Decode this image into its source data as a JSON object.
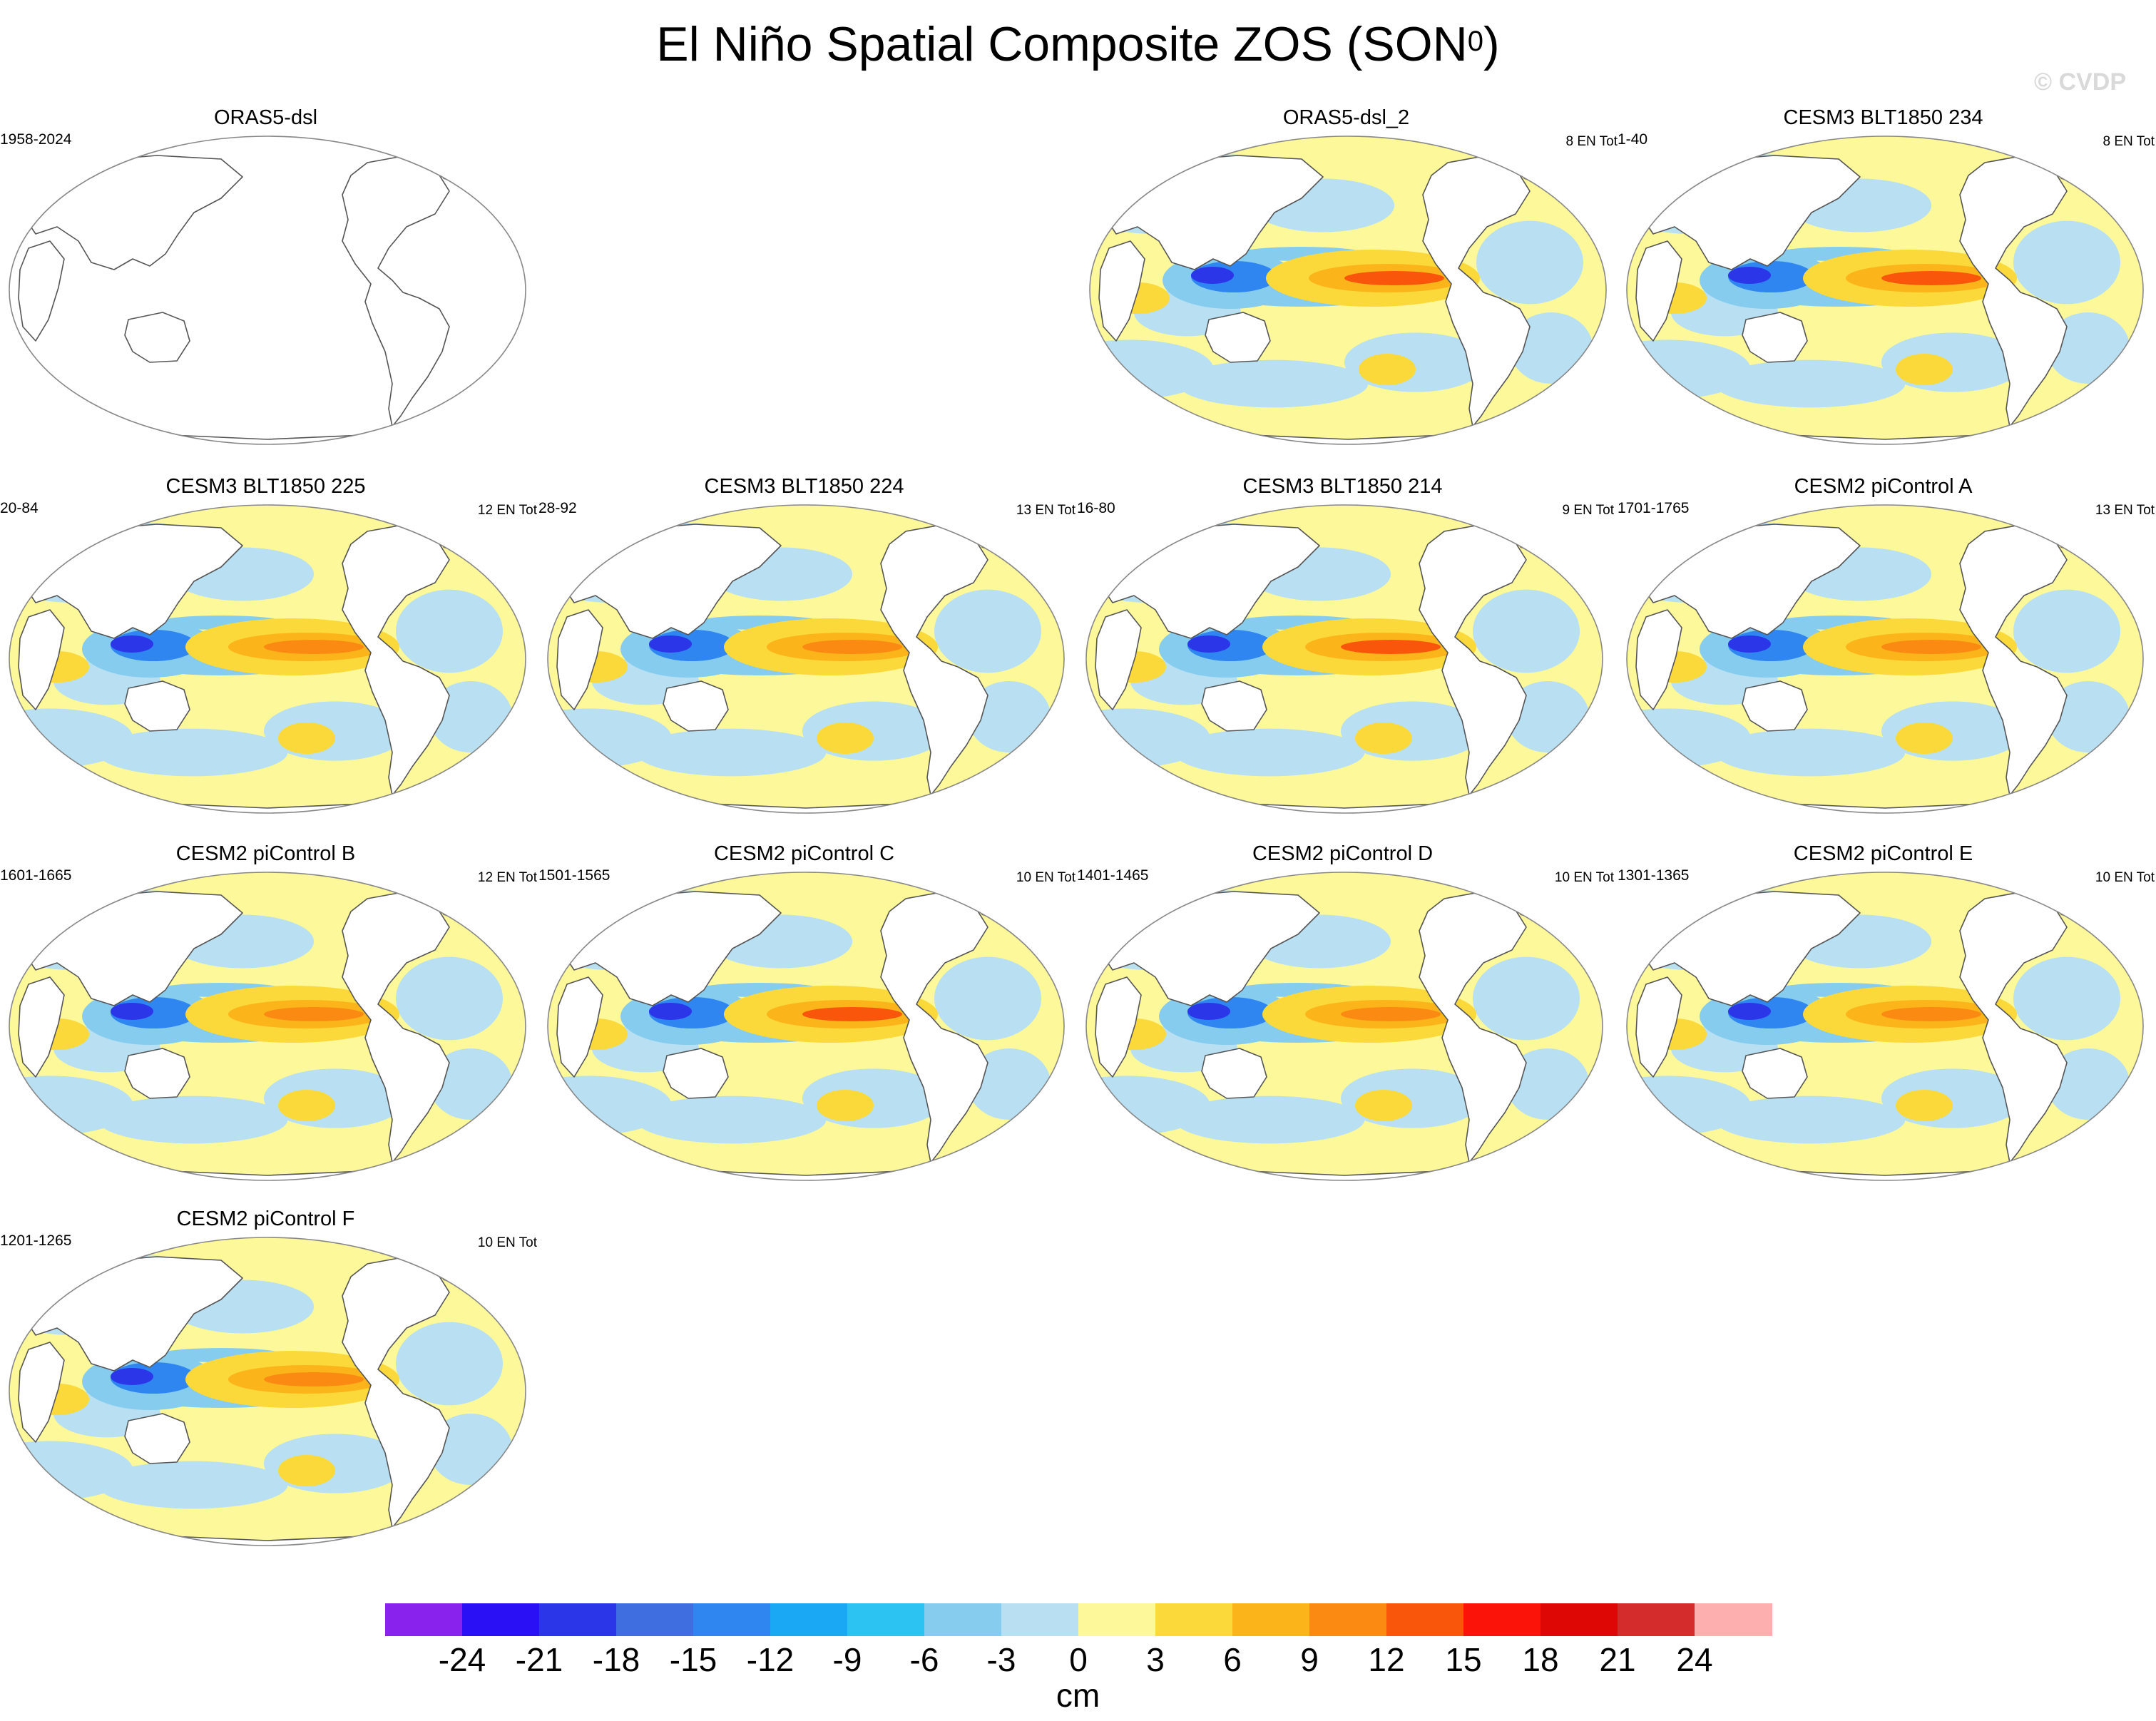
{
  "header": {
    "title_main": "El Niño Spatial Composite ZOS (SON",
    "title_sup": "0",
    "title_end": ")",
    "copyright": "© CVDP"
  },
  "colors": {
    "ocean_blank": "#ffffff",
    "land": "#ffffff",
    "coast": "#555555"
  },
  "panels": [
    {
      "title": "ORAS5-dsl",
      "period": "1958-2024",
      "count": "",
      "pattern": "blank"
    },
    {
      "title": "ORAS5-dsl_2",
      "period": "",
      "count": "8 EN Tot",
      "pattern": "strong"
    },
    {
      "title": "CESM3 BLT1850 234",
      "period": "1-40",
      "count": "8 EN Tot",
      "pattern": "strong"
    },
    {
      "title": "CESM3 BLT1850 225",
      "period": "20-84",
      "count": "12 EN Tot",
      "pattern": "medium"
    },
    {
      "title": "CESM3 BLT1850 224",
      "period": "28-92",
      "count": "13 EN Tot",
      "pattern": "medium"
    },
    {
      "title": "CESM3 BLT1850 214",
      "period": "16-80",
      "count": "9 EN Tot",
      "pattern": "strong"
    },
    {
      "title": "CESM2 piControl A",
      "period": "1701-1765",
      "count": "13 EN Tot",
      "pattern": "medium"
    },
    {
      "title": "CESM2 piControl B",
      "period": "1601-1665",
      "count": "12 EN Tot",
      "pattern": "medium"
    },
    {
      "title": "CESM2 piControl C",
      "period": "1501-1565",
      "count": "10 EN Tot",
      "pattern": "strong"
    },
    {
      "title": "CESM2 piControl D",
      "period": "1401-1465",
      "count": "10 EN Tot",
      "pattern": "medium"
    },
    {
      "title": "CESM2 piControl E",
      "period": "1301-1365",
      "count": "10 EN Tot",
      "pattern": "medium"
    },
    {
      "title": "CESM2 piControl F",
      "period": "1201-1265",
      "count": "10 EN Tot",
      "pattern": "medium"
    }
  ],
  "colorbar": {
    "colors": [
      "#8a22ee",
      "#2a10f5",
      "#2a36e8",
      "#3f6ee0",
      "#2f86f0",
      "#1aa8f5",
      "#2cc3f2",
      "#86ccee",
      "#b8e0f2",
      "#fdf89a",
      "#fcd93a",
      "#fbb51a",
      "#fb8a12",
      "#f9560c",
      "#fb1208",
      "#df0606",
      "#d42c2c",
      "#fdaeae"
    ],
    "labels": [
      "-24",
      "-21",
      "-18",
      "-15",
      "-12",
      "-9",
      "-6",
      "-3",
      "0",
      "3",
      "6",
      "9",
      "12",
      "15",
      "18",
      "21",
      "24"
    ],
    "units": "cm"
  }
}
